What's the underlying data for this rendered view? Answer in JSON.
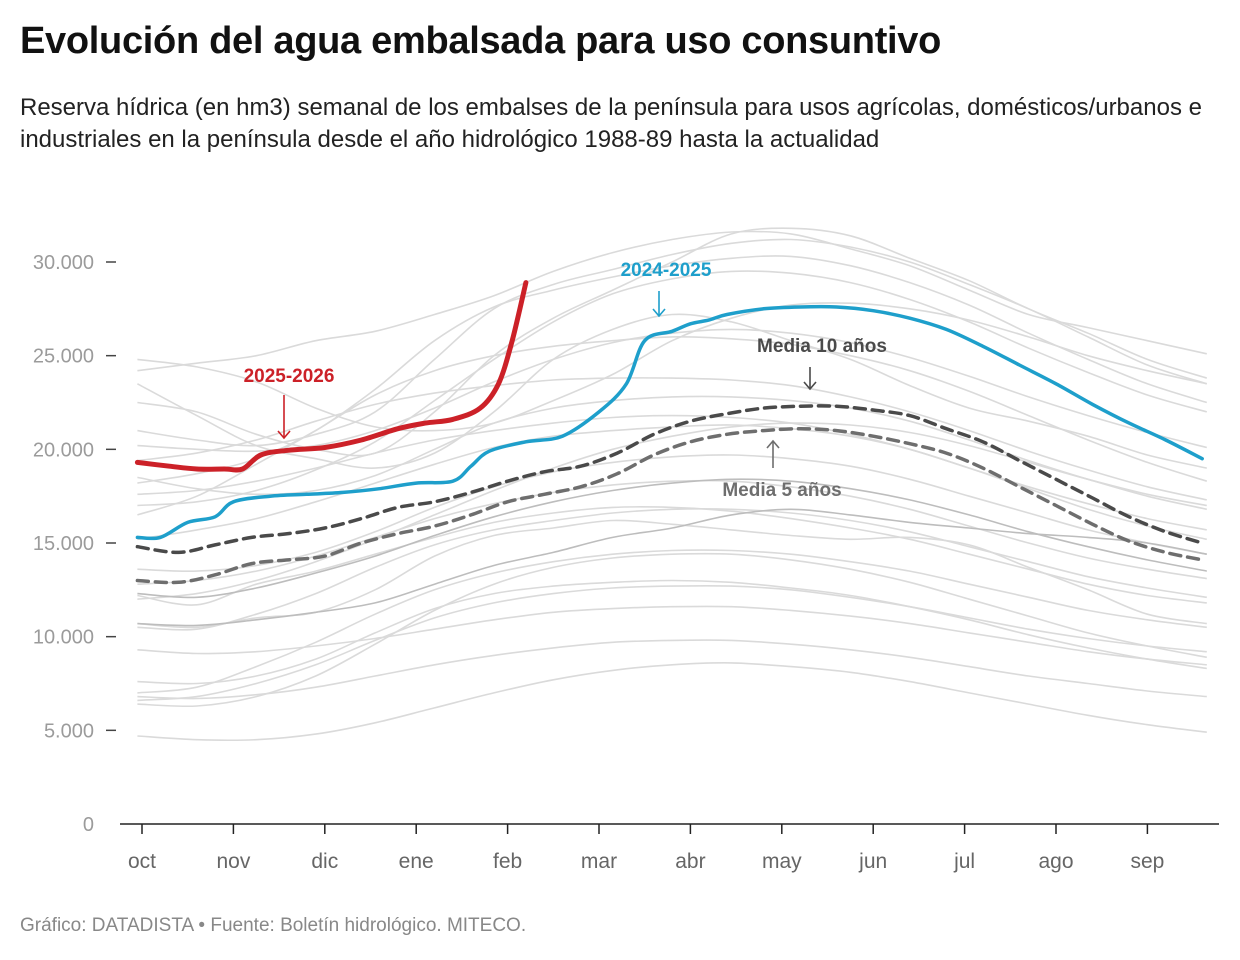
{
  "title": "Evolución del agua embalsada para uso consuntivo",
  "subtitle": "Reserva hídrica (en hm3) semanal de los embalses de la península para usos agrícolas, domésticos/urbanos e industriales en la península desde el año hidrológico 1988-89 hasta la actualidad",
  "source": "Gráfico: DATADISTA • Fuente: Boletín hidrológico. MITECO.",
  "chart_data": {
    "type": "line",
    "title": "Evolución del agua embalsada para uso consuntivo",
    "xlabel": "",
    "ylabel": "",
    "x_unit": "month index (0 = 1 oct, 1 = 1 nov, …, 11 = 1 sep)",
    "xlim": [
      -0.05,
      11.6
    ],
    "ylim": [
      0,
      30000
    ],
    "yticks": [
      0,
      5000,
      10000,
      15000,
      20000,
      25000,
      30000
    ],
    "ytick_labels": [
      "0",
      "5.000",
      "10.000",
      "15.000",
      "20.000",
      "25.000",
      "30.000"
    ],
    "months": [
      "oct",
      "nov",
      "dic",
      "ene",
      "feb",
      "mar",
      "abr",
      "may",
      "jun",
      "jul",
      "ago",
      "sep"
    ],
    "grid": false,
    "legend": "none (direct labels)",
    "colors": {
      "current": "#cc2128",
      "previous": "#1e9fcb",
      "mean10": "#4a4a4a",
      "mean5": "#6e6e6e",
      "history": "#dadada",
      "history_dark": "#bdbdbd"
    },
    "highlight_series": [
      {
        "name": "2025-2026",
        "points": [
          [
            -0.05,
            19300
          ],
          [
            0.3,
            19100
          ],
          [
            0.6,
            18950
          ],
          [
            0.9,
            18950
          ],
          [
            1.1,
            18950
          ],
          [
            1.3,
            19700
          ],
          [
            1.6,
            19950
          ],
          [
            2.0,
            20100
          ],
          [
            2.4,
            20500
          ],
          [
            2.8,
            21100
          ],
          [
            3.1,
            21400
          ],
          [
            3.4,
            21600
          ],
          [
            3.7,
            22200
          ],
          [
            3.9,
            23500
          ],
          [
            4.05,
            25800
          ],
          [
            4.2,
            28900
          ]
        ]
      },
      {
        "name": "2024-2025",
        "points": [
          [
            -0.05,
            15300
          ],
          [
            0.2,
            15300
          ],
          [
            0.5,
            16100
          ],
          [
            0.8,
            16400
          ],
          [
            1.0,
            17200
          ],
          [
            1.4,
            17500
          ],
          [
            1.8,
            17600
          ],
          [
            2.2,
            17700
          ],
          [
            2.6,
            17900
          ],
          [
            3.0,
            18200
          ],
          [
            3.4,
            18300
          ],
          [
            3.6,
            19100
          ],
          [
            3.8,
            19900
          ],
          [
            4.2,
            20400
          ],
          [
            4.6,
            20700
          ],
          [
            5.0,
            22000
          ],
          [
            5.3,
            23500
          ],
          [
            5.5,
            25800
          ],
          [
            5.8,
            26300
          ],
          [
            6.0,
            26700
          ],
          [
            6.2,
            26900
          ],
          [
            6.4,
            27200
          ],
          [
            6.8,
            27500
          ],
          [
            7.2,
            27600
          ],
          [
            7.6,
            27600
          ],
          [
            8.0,
            27400
          ],
          [
            8.4,
            27000
          ],
          [
            8.8,
            26400
          ],
          [
            9.2,
            25500
          ],
          [
            9.6,
            24500
          ],
          [
            10.0,
            23500
          ],
          [
            10.4,
            22400
          ],
          [
            10.8,
            21400
          ],
          [
            11.2,
            20500
          ],
          [
            11.6,
            19500
          ]
        ]
      },
      {
        "name": "Media 10 años",
        "points": [
          [
            -0.05,
            14800
          ],
          [
            0.4,
            14500
          ],
          [
            0.8,
            14900
          ],
          [
            1.2,
            15300
          ],
          [
            1.6,
            15500
          ],
          [
            2.0,
            15800
          ],
          [
            2.4,
            16300
          ],
          [
            2.8,
            16900
          ],
          [
            3.2,
            17200
          ],
          [
            3.6,
            17700
          ],
          [
            4.0,
            18300
          ],
          [
            4.4,
            18800
          ],
          [
            4.8,
            19100
          ],
          [
            5.2,
            19800
          ],
          [
            5.6,
            20800
          ],
          [
            6.0,
            21500
          ],
          [
            6.4,
            21900
          ],
          [
            6.8,
            22200
          ],
          [
            7.2,
            22300
          ],
          [
            7.6,
            22300
          ],
          [
            8.0,
            22100
          ],
          [
            8.4,
            21800
          ],
          [
            8.8,
            21100
          ],
          [
            9.2,
            20400
          ],
          [
            9.6,
            19400
          ],
          [
            10.0,
            18400
          ],
          [
            10.4,
            17400
          ],
          [
            10.8,
            16400
          ],
          [
            11.2,
            15600
          ],
          [
            11.6,
            15000
          ]
        ]
      },
      {
        "name": "Media 5 años",
        "points": [
          [
            -0.05,
            13000
          ],
          [
            0.4,
            12900
          ],
          [
            0.8,
            13300
          ],
          [
            1.2,
            13900
          ],
          [
            1.6,
            14100
          ],
          [
            2.0,
            14300
          ],
          [
            2.4,
            15000
          ],
          [
            2.8,
            15500
          ],
          [
            3.2,
            15900
          ],
          [
            3.6,
            16500
          ],
          [
            4.0,
            17200
          ],
          [
            4.4,
            17600
          ],
          [
            4.8,
            18000
          ],
          [
            5.2,
            18700
          ],
          [
            5.6,
            19700
          ],
          [
            6.0,
            20400
          ],
          [
            6.4,
            20800
          ],
          [
            6.8,
            21000
          ],
          [
            7.2,
            21100
          ],
          [
            7.6,
            21000
          ],
          [
            8.0,
            20700
          ],
          [
            8.4,
            20300
          ],
          [
            8.8,
            19800
          ],
          [
            9.2,
            19000
          ],
          [
            9.6,
            18000
          ],
          [
            10.0,
            17000
          ],
          [
            10.4,
            16000
          ],
          [
            10.8,
            15100
          ],
          [
            11.2,
            14500
          ],
          [
            11.6,
            14100
          ]
        ]
      }
    ],
    "history_series": [
      {
        "values": [
          23500,
          21800,
          20200,
          19500,
          19000,
          19800,
          22000,
          24800,
          26400,
          27200,
          26800,
          25800,
          24800,
          23400,
          22200,
          21500,
          20700,
          19700,
          19000
        ]
      },
      {
        "values": [
          24200,
          24600,
          25000,
          25800,
          26300,
          27200,
          28200,
          29500,
          30500,
          31200,
          31600,
          31500,
          30700,
          29800,
          28500,
          27200,
          26500,
          25800,
          25100
        ]
      },
      {
        "values": [
          24800,
          24400,
          23600,
          22200,
          21200,
          21000,
          21400,
          22600,
          24000,
          25800,
          27000,
          27700,
          27800,
          27500,
          26900,
          26000,
          25000,
          24200,
          23500
        ]
      },
      {
        "values": [
          22500,
          22000,
          20800,
          20000,
          19800,
          22000,
          25000,
          27000,
          28500,
          30000,
          31500,
          31800,
          31400,
          30200,
          29000,
          27500,
          26200,
          24800,
          23800
        ]
      },
      {
        "values": [
          21000,
          20500,
          20200,
          20800,
          22000,
          24800,
          27500,
          28800,
          29600,
          30400,
          31000,
          31200,
          30800,
          30000,
          28800,
          27500,
          26000,
          24500,
          23500
        ]
      },
      {
        "values": [
          18200,
          18700,
          19500,
          21000,
          23200,
          25800,
          27600,
          28500,
          29200,
          29800,
          30200,
          30300,
          29800,
          28900,
          27700,
          26200,
          24800,
          23500,
          22500
        ]
      },
      {
        "values": [
          17000,
          17200,
          17800,
          18900,
          20400,
          22600,
          24800,
          26800,
          28300,
          29100,
          29500,
          29400,
          28900,
          28000,
          26800,
          25400,
          24100,
          22900,
          22000
        ]
      },
      {
        "values": [
          18500,
          17900,
          17600,
          17800,
          18600,
          20000,
          21400,
          22200,
          22600,
          22800,
          22800,
          22600,
          22200,
          21500,
          20500,
          19400,
          18400,
          17500,
          16800
        ]
      },
      {
        "values": [
          16500,
          17500,
          19200,
          21000,
          22900,
          24200,
          25000,
          25500,
          25800,
          26000,
          25900,
          25600,
          25000,
          24200,
          23100,
          21800,
          20500,
          19300,
          18300
        ]
      },
      {
        "values": [
          17600,
          17800,
          18300,
          19000,
          19800,
          20500,
          21000,
          21400,
          21700,
          21800,
          21700,
          21400,
          20800,
          20000,
          19000,
          17900,
          16800,
          15900,
          15200
        ]
      },
      {
        "values": [
          19400,
          19800,
          20500,
          21500,
          22400,
          23000,
          23400,
          23700,
          23800,
          23800,
          23700,
          23400,
          22800,
          22000,
          21000,
          19900,
          18900,
          18000,
          17300
        ]
      },
      {
        "values": [
          12000,
          12300,
          13000,
          14000,
          15200,
          16500,
          17800,
          19000,
          20000,
          20700,
          21200,
          21400,
          21300,
          20900,
          20200,
          19300,
          18400,
          17600,
          17000
        ]
      },
      {
        "values": [
          15200,
          15700,
          16300,
          17200,
          18200,
          19200,
          20100,
          20700,
          21000,
          21200,
          21300,
          21100,
          20700,
          20000,
          19000,
          18000,
          17100,
          16300,
          15700
        ]
      },
      {
        "values": [
          12800,
          13000,
          13500,
          14300,
          15300,
          16300,
          17100,
          17700,
          18100,
          18300,
          18300,
          18000,
          17500,
          16800,
          15900,
          15000,
          14200,
          13600,
          13100
        ]
      },
      {
        "values": [
          10700,
          10500,
          11000,
          11300,
          12500,
          14300,
          15400,
          15800,
          16200,
          16000,
          15700,
          15400,
          15200,
          15300,
          14900,
          13700,
          12500,
          11200,
          10700
        ]
      },
      {
        "values": [
          12200,
          11700,
          12800,
          13500,
          14400,
          15300,
          16100,
          16600,
          16900,
          16900,
          16700,
          16300,
          15800,
          15200,
          14400,
          13600,
          12800,
          12200,
          11800
        ]
      },
      {
        "values": [
          10500,
          10400,
          11200,
          12300,
          13700,
          14900,
          15700,
          16200,
          16600,
          16800,
          16800,
          16600,
          16200,
          15600,
          14800,
          14000,
          13200,
          12600,
          12100
        ]
      },
      {
        "values": [
          7000,
          7300,
          8400,
          9700,
          11200,
          12500,
          13400,
          14000,
          14400,
          14600,
          14600,
          14400,
          14000,
          13500,
          12800,
          12100,
          11400,
          10900,
          10500
        ]
      },
      {
        "values": [
          6600,
          6800,
          7500,
          8500,
          9800,
          11000,
          11800,
          12300,
          12600,
          12700,
          12700,
          12500,
          12100,
          11600,
          11000,
          10400,
          9900,
          9500,
          9200
        ]
      },
      {
        "values": [
          9300,
          9100,
          9200,
          9500,
          9900,
          10400,
          10900,
          11300,
          11500,
          11600,
          11600,
          11400,
          11100,
          10700,
          10200,
          9700,
          9200,
          8800,
          8500
        ]
      },
      {
        "values": [
          6800,
          6700,
          6900,
          7300,
          7900,
          8500,
          9000,
          9400,
          9700,
          9800,
          9800,
          9600,
          9300,
          8900,
          8400,
          7900,
          7500,
          7100,
          6800
        ]
      },
      {
        "values": [
          4700,
          4500,
          4500,
          4800,
          5400,
          6200,
          7000,
          7700,
          8200,
          8500,
          8600,
          8400,
          8100,
          7600,
          7000,
          6400,
          5800,
          5300,
          4900
        ]
      },
      {
        "values": [
          7600,
          7500,
          7900,
          8800,
          10200,
          11500,
          12300,
          12700,
          12900,
          13000,
          12900,
          12600,
          12200,
          11600,
          10900,
          10100,
          9400,
          8800,
          8300
        ]
      },
      {
        "values": [
          6400,
          6300,
          6800,
          7900,
          9600,
          11400,
          12800,
          13700,
          14200,
          14400,
          14400,
          14100,
          13600,
          12900,
          12000,
          11100,
          10200,
          9500,
          8900
        ]
      },
      {
        "values": [
          13600,
          13500,
          13800,
          14500,
          15600,
          16900,
          18000,
          18800,
          19300,
          19600,
          19700,
          19500,
          19100,
          18400,
          17500,
          16600,
          15700,
          15000,
          14400
        ]
      },
      {
        "values": [
          20200,
          20000,
          19900,
          20200,
          21000,
          22200,
          23600,
          24800,
          25700,
          26200,
          26400,
          26200,
          25700,
          24900,
          23900,
          22800,
          21800,
          20900,
          20100
        ]
      }
    ],
    "history_dark_series": [
      {
        "values": [
          10700,
          10600,
          10900,
          11300,
          11800,
          12800,
          13800,
          14500,
          15300,
          15800,
          16500,
          16800,
          16500,
          16100,
          15800,
          15500,
          15300,
          15000,
          14400
        ]
      },
      {
        "values": [
          12300,
          12100,
          12600,
          13400,
          14300,
          15400,
          16400,
          17200,
          17800,
          18200,
          18400,
          18300,
          17900,
          17300,
          16500,
          15600,
          14800,
          14100,
          13500
        ]
      }
    ],
    "annotations": [
      {
        "text": "2025-2026",
        "color": "#cc2128",
        "arrow": "down"
      },
      {
        "text": "2024-2025",
        "color": "#1e9fcb",
        "arrow": "down"
      },
      {
        "text": "Media 10 años",
        "color": "#4a4a4a",
        "arrow": "down"
      },
      {
        "text": "Media 5 años",
        "color": "#6e6e6e",
        "arrow": "up"
      }
    ]
  }
}
